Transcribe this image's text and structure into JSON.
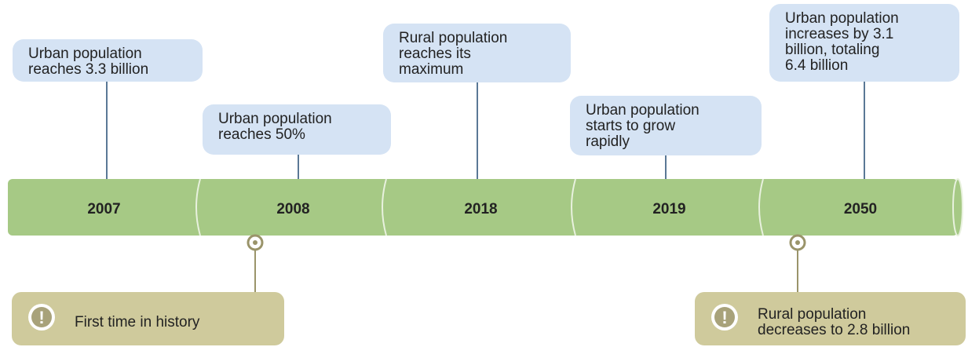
{
  "events": [
    {
      "year": "2007",
      "callout": [
        "Urban population",
        "reaches 3.3 billion"
      ]
    },
    {
      "year": "2008",
      "callout": [
        "Urban population",
        "reaches 50%"
      ]
    },
    {
      "year": "2018",
      "callout": [
        "Rural population",
        "reaches its",
        "maximum"
      ]
    },
    {
      "year": "2019",
      "callout": [
        "Urban population",
        "starts to grow",
        "rapidly"
      ]
    },
    {
      "year": "2050",
      "callout": [
        "Urban population",
        "increases by 3.1",
        "billion, totaling",
        "6.4 billion"
      ]
    }
  ],
  "notes": [
    {
      "icon": "!",
      "lines": [
        "First time in history"
      ]
    },
    {
      "icon": "!",
      "lines": [
        "Rural population",
        "decreases to 2.8 billion"
      ]
    }
  ]
}
